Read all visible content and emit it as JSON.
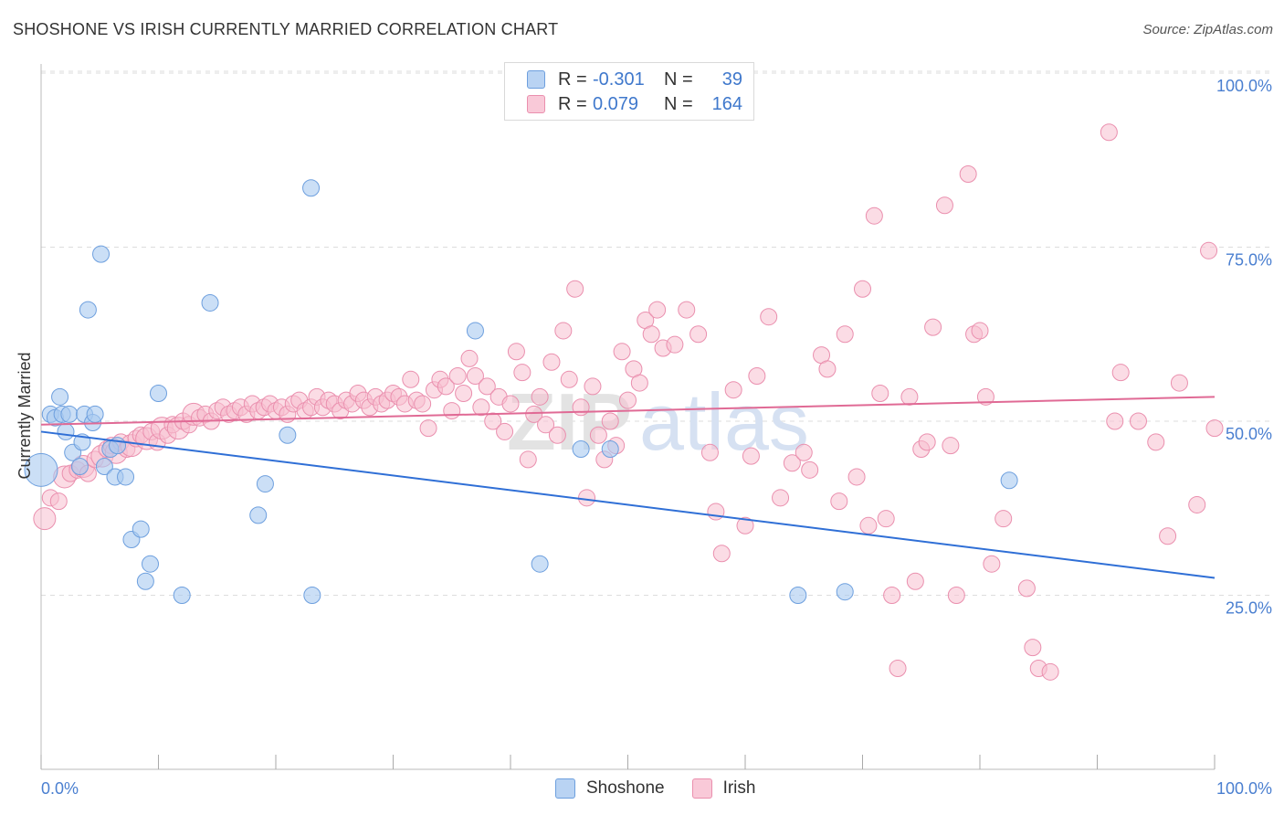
{
  "header": {
    "title": "SHOSHONE VS IRISH CURRENTLY MARRIED CORRELATION CHART",
    "source": "Source: ZipAtlas.com"
  },
  "legend": {
    "rows": [
      {
        "r_label": "R =",
        "r_value": "-0.301",
        "n_label": "N =",
        "n_value": "39"
      },
      {
        "r_label": "R =",
        "r_value": "0.079",
        "n_label": "N =",
        "n_value": "164"
      }
    ]
  },
  "bottom_legend": {
    "items": [
      "Shoshone",
      "Irish"
    ]
  },
  "watermark": {
    "zip": "ZIP",
    "atlas": "atlas"
  },
  "colors": {
    "shoshone_fill": "#a9c9f0",
    "shoshone_stroke": "#6d9fde",
    "shoshone_line": "#2f6fd6",
    "irish_fill": "#f7bfd0",
    "irish_stroke": "#ea8fae",
    "irish_line": "#e06a95",
    "tick_label": "#4a7fd0"
  },
  "chart_data": {
    "type": "scatter",
    "title": "SHOSHONE VS IRISH CURRENTLY MARRIED CORRELATION CHART",
    "xlabel": "",
    "ylabel": "Currently Married",
    "xlim": [
      0,
      100
    ],
    "ylim": [
      0,
      105
    ],
    "x_tick_labels": [
      "0.0%",
      "100.0%"
    ],
    "y_ticks": [
      25,
      50,
      75,
      100
    ],
    "y_tick_labels": [
      "25.0%",
      "50.0%",
      "75.0%",
      "100.0%"
    ],
    "grid": true,
    "legend_position": "top-center",
    "series": [
      {
        "name": "Shoshone",
        "r": -0.301,
        "n": 39,
        "trend": {
          "x": [
            0,
            100
          ],
          "y": [
            48.5,
            27.5
          ]
        },
        "points": [
          [
            0.0,
            43.0
          ],
          [
            0.8,
            51.0
          ],
          [
            1.2,
            50.5
          ],
          [
            1.6,
            53.5
          ],
          [
            1.8,
            51.0
          ],
          [
            2.1,
            48.5
          ],
          [
            2.4,
            51.0
          ],
          [
            2.7,
            45.5
          ],
          [
            3.3,
            43.5
          ],
          [
            3.5,
            47.0
          ],
          [
            3.7,
            51.0
          ],
          [
            4.0,
            66.0
          ],
          [
            4.4,
            49.8
          ],
          [
            4.6,
            51.0
          ],
          [
            5.1,
            74.0
          ],
          [
            5.4,
            43.5
          ],
          [
            5.9,
            46.0
          ],
          [
            6.3,
            42.0
          ],
          [
            6.5,
            46.5
          ],
          [
            7.2,
            42.0
          ],
          [
            7.7,
            33.0
          ],
          [
            8.5,
            34.5
          ],
          [
            8.9,
            27.0
          ],
          [
            9.3,
            29.5
          ],
          [
            10.0,
            54.0
          ],
          [
            12.0,
            25.0
          ],
          [
            14.4,
            67.0
          ],
          [
            18.5,
            36.5
          ],
          [
            19.1,
            41.0
          ],
          [
            21.0,
            48.0
          ],
          [
            23.0,
            83.5
          ],
          [
            23.1,
            25.0
          ],
          [
            37.0,
            63.0
          ],
          [
            42.5,
            29.5
          ],
          [
            46.0,
            46.0
          ],
          [
            48.5,
            46.0
          ],
          [
            64.5,
            25.0
          ],
          [
            68.5,
            25.5
          ],
          [
            82.5,
            41.5
          ]
        ]
      },
      {
        "name": "Irish",
        "r": 0.079,
        "n": 164,
        "trend": {
          "x": [
            0,
            100
          ],
          "y": [
            49.5,
            53.5
          ]
        },
        "points": [
          [
            0.3,
            36.0
          ],
          [
            0.8,
            39.0
          ],
          [
            1.5,
            38.5
          ],
          [
            2.0,
            42.0
          ],
          [
            2.5,
            42.5
          ],
          [
            3.1,
            43.0
          ],
          [
            3.6,
            43.5
          ],
          [
            4.0,
            42.5
          ],
          [
            4.6,
            44.5
          ],
          [
            5.2,
            45.0
          ],
          [
            5.6,
            46.0
          ],
          [
            6.0,
            46.5
          ],
          [
            6.4,
            45.5
          ],
          [
            6.8,
            47.0
          ],
          [
            7.3,
            46.0
          ],
          [
            7.7,
            46.5
          ],
          [
            8.1,
            47.5
          ],
          [
            8.5,
            48.0
          ],
          [
            9.0,
            47.5
          ],
          [
            9.4,
            48.5
          ],
          [
            9.9,
            47.0
          ],
          [
            10.3,
            49.0
          ],
          [
            10.8,
            48.0
          ],
          [
            11.2,
            49.5
          ],
          [
            11.7,
            49.0
          ],
          [
            12.1,
            50.0
          ],
          [
            12.6,
            49.5
          ],
          [
            13.0,
            51.0
          ],
          [
            13.5,
            50.5
          ],
          [
            14.0,
            51.0
          ],
          [
            14.5,
            50.0
          ],
          [
            15.0,
            51.5
          ],
          [
            15.5,
            52.0
          ],
          [
            16.0,
            51.0
          ],
          [
            16.5,
            51.5
          ],
          [
            17.0,
            52.0
          ],
          [
            17.5,
            51.0
          ],
          [
            18.0,
            52.5
          ],
          [
            18.5,
            51.5
          ],
          [
            19.0,
            52.0
          ],
          [
            19.5,
            52.5
          ],
          [
            20.0,
            51.5
          ],
          [
            20.5,
            52.0
          ],
          [
            21.0,
            51.0
          ],
          [
            21.5,
            52.5
          ],
          [
            22.0,
            53.0
          ],
          [
            22.5,
            51.5
          ],
          [
            23.0,
            52.0
          ],
          [
            23.5,
            53.5
          ],
          [
            24.0,
            52.0
          ],
          [
            24.5,
            53.0
          ],
          [
            25.0,
            52.5
          ],
          [
            25.5,
            51.5
          ],
          [
            26.0,
            53.0
          ],
          [
            26.5,
            52.5
          ],
          [
            27.0,
            54.0
          ],
          [
            27.5,
            53.0
          ],
          [
            28.0,
            52.0
          ],
          [
            28.5,
            53.5
          ],
          [
            29.0,
            52.5
          ],
          [
            29.5,
            53.0
          ],
          [
            30.0,
            54.0
          ],
          [
            30.5,
            53.5
          ],
          [
            31.0,
            52.5
          ],
          [
            31.5,
            56.0
          ],
          [
            32.0,
            53.0
          ],
          [
            32.5,
            52.5
          ],
          [
            33.0,
            49.0
          ],
          [
            33.5,
            54.5
          ],
          [
            34.0,
            56.0
          ],
          [
            34.5,
            55.0
          ],
          [
            35.0,
            51.5
          ],
          [
            35.5,
            56.5
          ],
          [
            36.0,
            54.0
          ],
          [
            36.5,
            59.0
          ],
          [
            37.0,
            56.5
          ],
          [
            37.5,
            52.0
          ],
          [
            38.0,
            55.0
          ],
          [
            38.5,
            50.0
          ],
          [
            39.0,
            53.5
          ],
          [
            39.5,
            48.5
          ],
          [
            40.0,
            52.5
          ],
          [
            40.5,
            60.0
          ],
          [
            41.0,
            57.0
          ],
          [
            41.5,
            44.5
          ],
          [
            42.0,
            51.0
          ],
          [
            42.5,
            53.5
          ],
          [
            43.0,
            49.5
          ],
          [
            43.5,
            58.5
          ],
          [
            44.0,
            48.0
          ],
          [
            44.5,
            63.0
          ],
          [
            45.0,
            56.0
          ],
          [
            45.5,
            69.0
          ],
          [
            46.0,
            52.0
          ],
          [
            46.5,
            39.0
          ],
          [
            47.0,
            55.0
          ],
          [
            47.5,
            48.0
          ],
          [
            48.0,
            44.5
          ],
          [
            48.5,
            50.0
          ],
          [
            49.0,
            46.5
          ],
          [
            49.5,
            60.0
          ],
          [
            50.0,
            53.0
          ],
          [
            50.5,
            57.5
          ],
          [
            51.0,
            55.5
          ],
          [
            51.5,
            64.5
          ],
          [
            52.0,
            62.5
          ],
          [
            52.5,
            66.0
          ],
          [
            53.0,
            60.5
          ],
          [
            54.0,
            61.0
          ],
          [
            55.0,
            66.0
          ],
          [
            56.0,
            62.5
          ],
          [
            57.0,
            45.5
          ],
          [
            57.5,
            37.0
          ],
          [
            58.0,
            31.0
          ],
          [
            59.0,
            54.5
          ],
          [
            60.0,
            35.0
          ],
          [
            60.5,
            45.0
          ],
          [
            61.0,
            56.5
          ],
          [
            62.0,
            65.0
          ],
          [
            63.0,
            39.0
          ],
          [
            64.0,
            44.0
          ],
          [
            65.0,
            45.5
          ],
          [
            65.5,
            43.0
          ],
          [
            66.5,
            59.5
          ],
          [
            67.0,
            57.5
          ],
          [
            68.0,
            38.5
          ],
          [
            68.5,
            62.5
          ],
          [
            69.5,
            42.0
          ],
          [
            70.0,
            69.0
          ],
          [
            70.5,
            35.0
          ],
          [
            71.0,
            79.5
          ],
          [
            71.5,
            54.0
          ],
          [
            72.0,
            36.0
          ],
          [
            72.5,
            25.0
          ],
          [
            73.0,
            14.5
          ],
          [
            74.0,
            53.5
          ],
          [
            74.5,
            27.0
          ],
          [
            75.0,
            46.0
          ],
          [
            75.5,
            47.0
          ],
          [
            76.0,
            63.5
          ],
          [
            77.0,
            81.0
          ],
          [
            77.5,
            46.5
          ],
          [
            78.0,
            25.0
          ],
          [
            79.0,
            85.5
          ],
          [
            79.5,
            62.5
          ],
          [
            80.0,
            63.0
          ],
          [
            80.5,
            53.5
          ],
          [
            81.0,
            29.5
          ],
          [
            82.0,
            36.0
          ],
          [
            84.0,
            26.0
          ],
          [
            84.5,
            17.5
          ],
          [
            85.0,
            14.5
          ],
          [
            86.0,
            14.0
          ],
          [
            91.0,
            91.5
          ],
          [
            91.5,
            50.0
          ],
          [
            92.0,
            57.0
          ],
          [
            93.5,
            50.0
          ],
          [
            95.0,
            47.0
          ],
          [
            96.0,
            33.5
          ],
          [
            97.0,
            55.5
          ],
          [
            98.5,
            38.0
          ],
          [
            99.5,
            74.5
          ],
          [
            100.0,
            49.0
          ]
        ]
      }
    ]
  }
}
